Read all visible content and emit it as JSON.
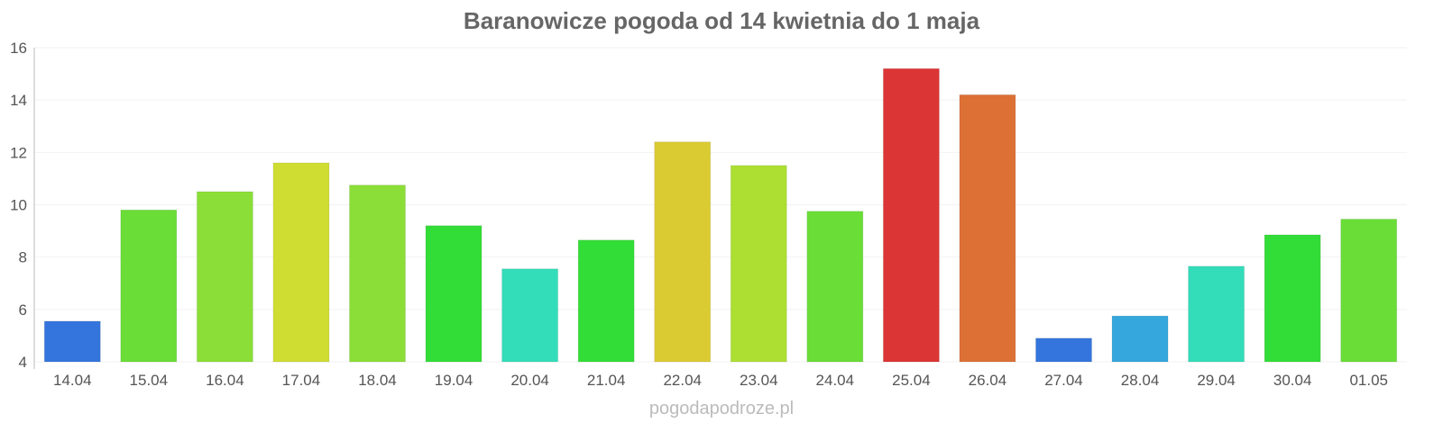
{
  "chart_data": {
    "type": "bar",
    "title": "Baranowicze pogoda od 14 kwietnia do 1 maja",
    "xlabel": "",
    "ylabel": "",
    "ylim": [
      4,
      16
    ],
    "yticks": [
      4,
      6,
      8,
      10,
      12,
      14,
      16
    ],
    "grid": true,
    "categories": [
      "14.04",
      "15.04",
      "16.04",
      "17.04",
      "18.04",
      "19.04",
      "20.04",
      "21.04",
      "22.04",
      "23.04",
      "24.04",
      "25.04",
      "26.04",
      "27.04",
      "28.04",
      "29.04",
      "30.04",
      "01.05"
    ],
    "values": [
      5.55,
      9.8,
      10.5,
      11.6,
      10.75,
      9.2,
      7.55,
      8.65,
      12.4,
      11.5,
      9.75,
      15.2,
      14.2,
      4.9,
      5.75,
      7.65,
      8.85,
      9.45
    ],
    "colors": [
      "#3375dc",
      "#6add37",
      "#8bde37",
      "#cfdd33",
      "#8bde37",
      "#33dd37",
      "#33ddb9",
      "#33dd37",
      "#dbcb33",
      "#addf33",
      "#6add37",
      "#dc3535",
      "#dd7035",
      "#3375dc",
      "#35a7dc",
      "#33ddb9",
      "#33dd37",
      "#6add37"
    ]
  },
  "watermark": "pogodapodroze.pl"
}
